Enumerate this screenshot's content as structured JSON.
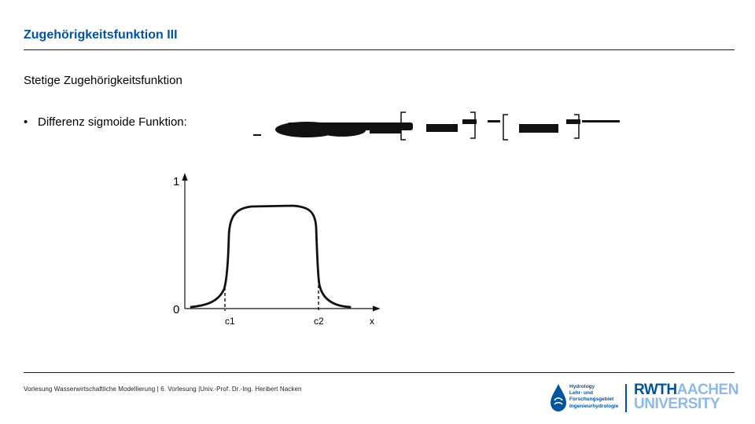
{
  "header": {
    "title": "Zugehörigkeitsfunktion III"
  },
  "content": {
    "subtitle": "Stetige Zugehörigkeitsfunktion",
    "bullet_marker": "•",
    "bullet_text": "Differenz sigmoide Funktion:"
  },
  "diagram": {
    "y_label_top": "1",
    "y_label_bottom": "0",
    "x_labels": [
      "c1",
      "c2",
      "x"
    ]
  },
  "footer": {
    "text": "Vorlesung Wasserwirtschaftliche Modellierung | 6. Vorlesung |Univ.-Prof. Dr.-Ing. Heribert Nacken",
    "institute_lines": [
      "Hydrology",
      "Lehr- und",
      "Forschungsgebiet",
      "Ingenieurhydrologie"
    ],
    "university_line1_a": "RWTH",
    "university_line1_b": "AACHEN",
    "university_line2": "UNIVERSITY"
  },
  "colors": {
    "title": "#00549f",
    "rwth_blue": "#00549f",
    "rwth_light_blue": "#8ebae5"
  }
}
